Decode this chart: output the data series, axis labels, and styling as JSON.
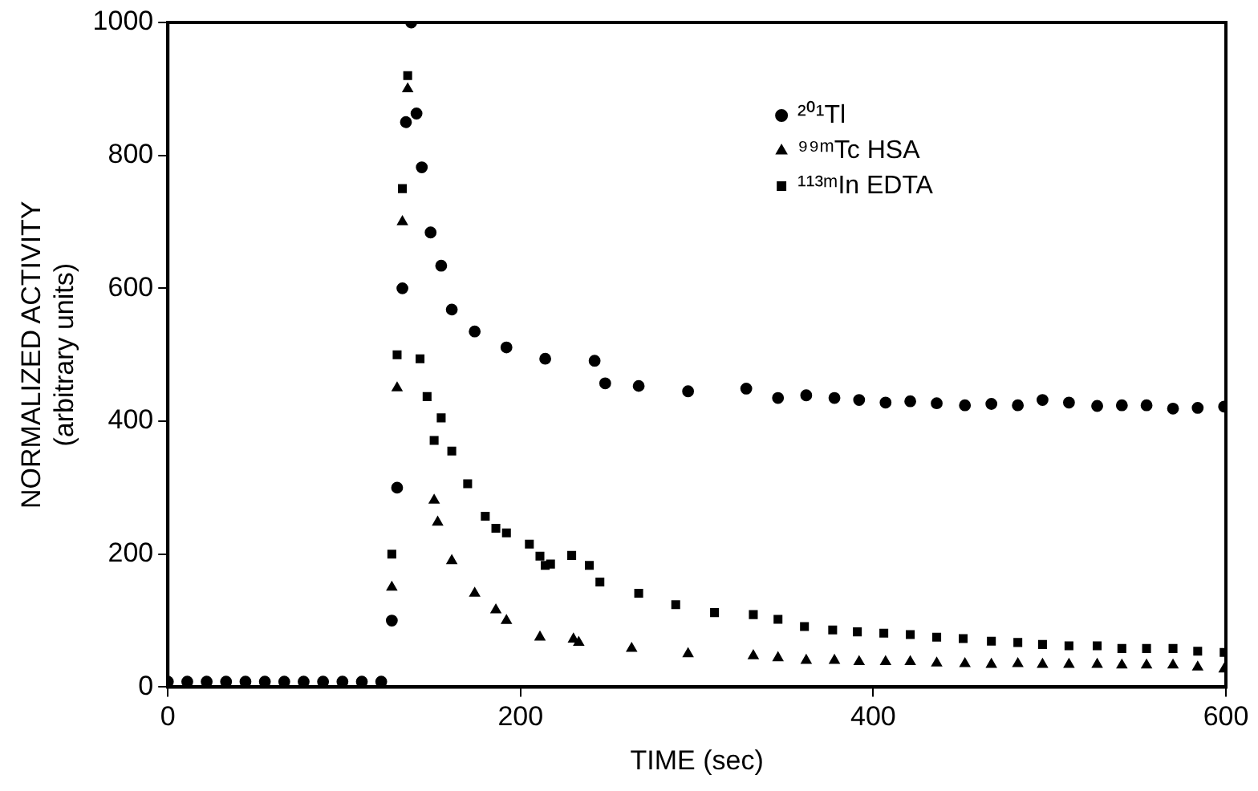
{
  "chart_data": {
    "type": "scatter",
    "xlabel": "TIME (sec)",
    "ylabel": "NORMALIZED ACTIVITY\n(arbitrary units)",
    "xlim": [
      0,
      600
    ],
    "xticks": [
      0,
      200,
      400,
      600
    ],
    "ylim": [
      0,
      1000
    ],
    "yticks": [
      0,
      200,
      400,
      600,
      800,
      1000
    ],
    "grid": false,
    "legend": "top right",
    "series": [
      {
        "name": "²⁰¹Tl",
        "color": "#000000",
        "marker": "circle",
        "x": [
          0,
          11,
          22,
          33,
          44,
          55,
          66,
          77,
          88,
          99,
          110,
          121,
          127,
          130,
          133,
          135,
          138,
          141,
          144,
          149,
          155,
          161,
          174,
          192,
          214,
          242,
          248,
          267,
          295,
          328,
          346,
          362,
          378,
          392,
          407,
          421,
          436,
          452,
          467,
          482,
          496,
          511,
          527,
          541,
          555,
          570,
          584,
          599
        ],
        "values": [
          8,
          8,
          8,
          8,
          8,
          8,
          8,
          8,
          8,
          8,
          8,
          8,
          100,
          300,
          600,
          850,
          1000,
          863,
          782,
          684,
          634,
          568,
          535,
          511,
          494,
          491,
          457,
          453,
          445,
          449,
          435,
          439,
          435,
          432,
          428,
          430,
          427,
          424,
          426,
          424,
          432,
          428,
          423,
          424,
          424,
          419,
          420,
          422
        ]
      },
      {
        "name": "⁹⁹ᵐTc HSA",
        "color": "#000000",
        "marker": "triangle",
        "x": [
          127,
          130,
          133,
          136,
          151,
          153,
          161,
          174,
          186,
          192,
          211,
          230,
          233,
          263,
          295,
          332,
          346,
          362,
          378,
          392,
          407,
          421,
          436,
          452,
          467,
          482,
          496,
          511,
          527,
          541,
          555,
          570,
          584,
          599
        ],
        "values": [
          150,
          450,
          700,
          900,
          281,
          248,
          190,
          141,
          116,
          100,
          75,
          72,
          67,
          58,
          50,
          47,
          44,
          40,
          40,
          38,
          38,
          38,
          36,
          35,
          34,
          35,
          34,
          34,
          34,
          33,
          33,
          33,
          30,
          27
        ]
      },
      {
        "name": "¹¹³ᵐIn EDTA",
        "color": "#000000",
        "marker": "square",
        "x": [
          127,
          130,
          133,
          136,
          143,
          147,
          151,
          155,
          161,
          170,
          180,
          186,
          192,
          205,
          211,
          214,
          217,
          229,
          239,
          245,
          267,
          288,
          310,
          332,
          346,
          361,
          377,
          391,
          406,
          421,
          436,
          451,
          467,
          482,
          496,
          511,
          527,
          541,
          555,
          570,
          584,
          599
        ],
        "values": [
          200,
          500,
          750,
          920,
          494,
          437,
          371,
          405,
          355,
          306,
          257,
          239,
          232,
          215,
          197,
          183,
          185,
          198,
          183,
          158,
          141,
          124,
          112,
          109,
          102,
          91,
          86,
          83,
          81,
          79,
          75,
          73,
          69,
          67,
          64,
          62,
          62,
          58,
          58,
          58,
          54,
          52
        ]
      }
    ]
  }
}
